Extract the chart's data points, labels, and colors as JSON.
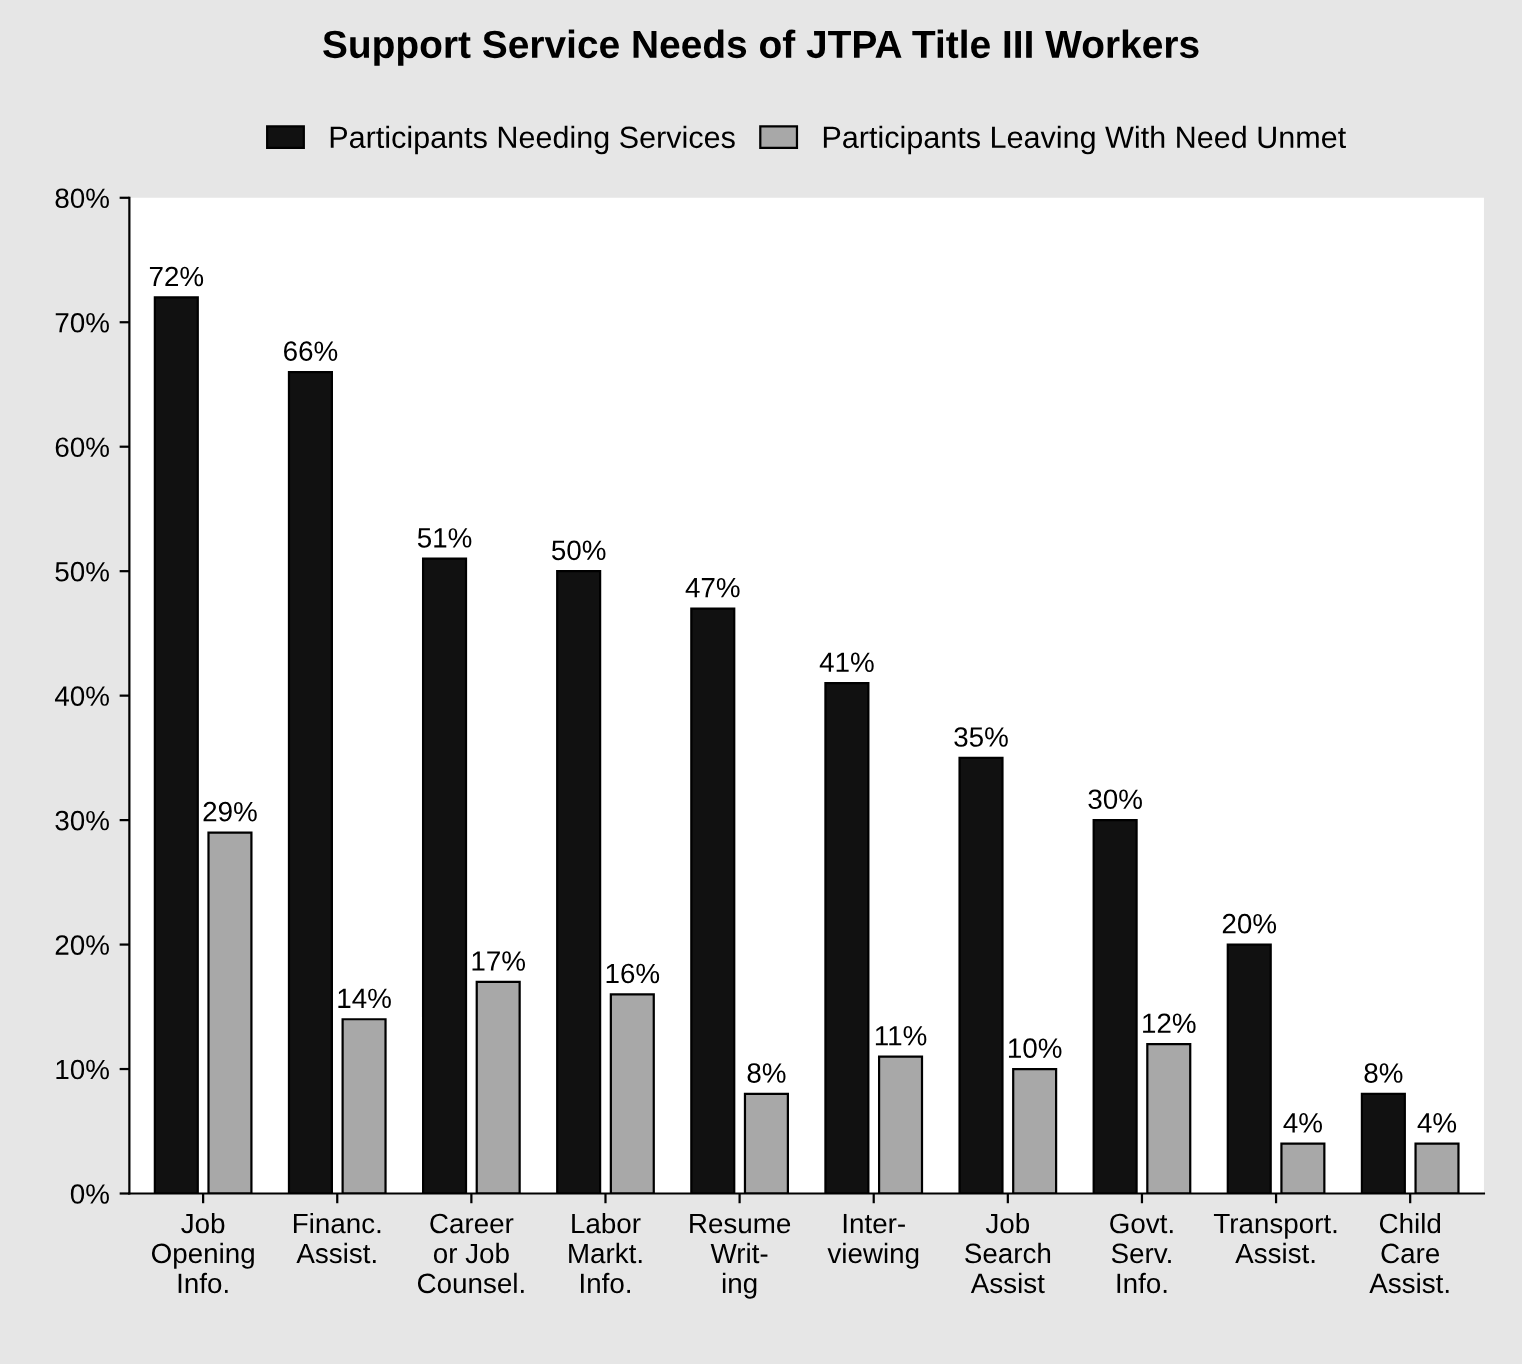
{
  "chart_data": {
    "type": "bar",
    "title": "Support Service Needs of JTPA Title III Workers",
    "categories": [
      "Job\nOpening\nInfo.",
      "Financ.\nAssist.",
      "Career\nor Job\nCounsel.",
      "Labor\nMarkt.\nInfo.",
      "Resume\nWrit-\ning",
      "Inter-\nviewing",
      "Job\nSearch\nAssist",
      "Govt.\nServ.\nInfo.",
      "Transport.\nAssist.",
      "Child\nCare\nAssist."
    ],
    "series": [
      {
        "name": "Participants Needing Services",
        "color": "#111111",
        "values": [
          72,
          66,
          51,
          50,
          47,
          41,
          35,
          30,
          20,
          8
        ],
        "value_labels": [
          "72%",
          "66%",
          "51%",
          "50%",
          "47%",
          "41%",
          "35%",
          "30%",
          "20%",
          "8%"
        ]
      },
      {
        "name": "Participants Leaving With Need Unmet",
        "color": "#a8a8a8",
        "values": [
          29,
          14,
          17,
          16,
          8,
          11,
          10,
          12,
          4,
          4
        ],
        "value_labels": [
          "29%",
          "14%",
          "17%",
          "16%",
          "8%",
          "11%",
          "10%",
          "12%",
          "4%",
          "4%"
        ]
      }
    ],
    "ylim": [
      0,
      80
    ],
    "yticks": [
      {
        "value": 0,
        "label": "0%"
      },
      {
        "value": 10,
        "label": "10%"
      },
      {
        "value": 20,
        "label": "20%"
      },
      {
        "value": 30,
        "label": "30%"
      },
      {
        "value": 40,
        "label": "40%"
      },
      {
        "value": 50,
        "label": "50%"
      },
      {
        "value": 60,
        "label": "60%"
      },
      {
        "value": 70,
        "label": "70%"
      },
      {
        "value": 80,
        "label": "80%"
      }
    ],
    "legend": "top",
    "grid": false
  }
}
